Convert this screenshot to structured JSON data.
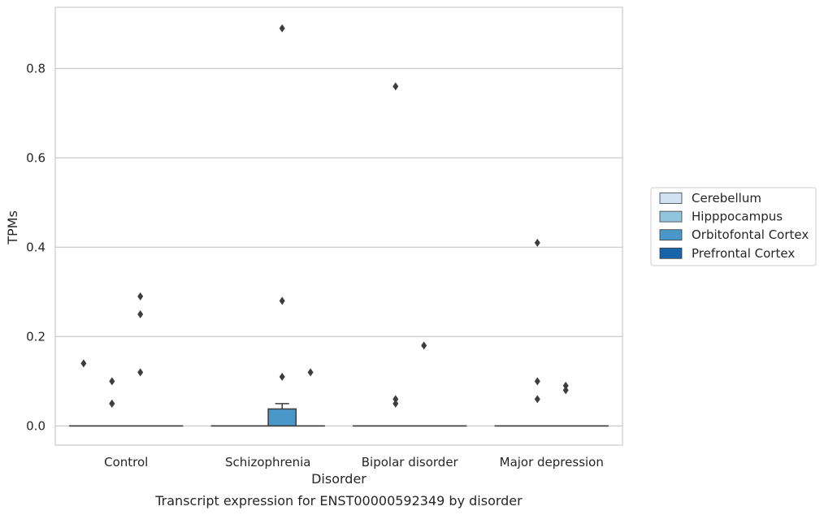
{
  "chart_data": {
    "type": "box",
    "caption": "Transcript expression for ENST00000592349 by disorder",
    "xlabel": "Disorder",
    "ylabel": "TPMs",
    "ylim": [
      -0.043,
      0.937
    ],
    "yticks": [
      0.0,
      0.2,
      0.4,
      0.6,
      0.8
    ],
    "ytick_labels": [
      "0.0",
      "0.2",
      "0.4",
      "0.6",
      "0.8"
    ],
    "grid": "horizontal",
    "categories": [
      "Control",
      "Schizophrenia",
      "Bipolar disorder",
      "Major depression"
    ],
    "legend_position": "right",
    "series": [
      {
        "name": "Cerebellum",
        "color": "#cfe1f2",
        "boxes": [
          {
            "q1": 0,
            "median": 0,
            "q3": 0,
            "whislo": 0,
            "whishi": 0,
            "fliers": [
              0.14
            ]
          },
          {
            "q1": 0,
            "median": 0,
            "q3": 0,
            "whislo": 0,
            "whishi": 0,
            "fliers": []
          },
          {
            "q1": 0,
            "median": 0,
            "q3": 0,
            "whislo": 0,
            "whishi": 0,
            "fliers": []
          },
          {
            "q1": 0,
            "median": 0,
            "q3": 0,
            "whislo": 0,
            "whishi": 0,
            "fliers": []
          }
        ]
      },
      {
        "name": "Hipppocampus",
        "color": "#93c4de",
        "boxes": [
          {
            "q1": 0,
            "median": 0,
            "q3": 0,
            "whislo": 0,
            "whishi": 0,
            "fliers": [
              0.1,
              0.05,
              0.05
            ]
          },
          {
            "q1": 0,
            "median": 0,
            "q3": 0,
            "whislo": 0,
            "whishi": 0,
            "fliers": []
          },
          {
            "q1": 0,
            "median": 0,
            "q3": 0,
            "whislo": 0,
            "whishi": 0,
            "fliers": [
              0.76,
              0.06,
              0.05
            ]
          },
          {
            "q1": 0,
            "median": 0,
            "q3": 0,
            "whislo": 0,
            "whishi": 0,
            "fliers": [
              0.41,
              0.1,
              0.06
            ]
          }
        ]
      },
      {
        "name": "Orbitofontal Cortex",
        "color": "#4a98c9",
        "boxes": [
          {
            "q1": 0,
            "median": 0,
            "q3": 0,
            "whislo": 0,
            "whishi": 0,
            "fliers": [
              0.29,
              0.25,
              0.12
            ]
          },
          {
            "q1": 0,
            "median": 0,
            "q3": 0.038,
            "whislo": 0,
            "whishi": 0.05,
            "fliers": [
              0.89,
              0.28,
              0.11
            ]
          },
          {
            "q1": 0,
            "median": 0,
            "q3": 0,
            "whislo": 0,
            "whishi": 0,
            "fliers": [
              0.18
            ]
          },
          {
            "q1": 0,
            "median": 0,
            "q3": 0,
            "whislo": 0,
            "whishi": 0,
            "fliers": [
              0.09,
              0.08
            ]
          }
        ]
      },
      {
        "name": "Prefrontal Cortex",
        "color": "#1764ab",
        "boxes": [
          {
            "q1": 0,
            "median": 0,
            "q3": 0,
            "whislo": 0,
            "whishi": 0,
            "fliers": []
          },
          {
            "q1": 0,
            "median": 0,
            "q3": 0,
            "whislo": 0,
            "whishi": 0,
            "fliers": [
              0.12
            ]
          },
          {
            "q1": 0,
            "median": 0,
            "q3": 0,
            "whislo": 0,
            "whishi": 0,
            "fliers": []
          },
          {
            "q1": 0,
            "median": 0,
            "q3": 0,
            "whislo": 0,
            "whishi": 0,
            "fliers": []
          }
        ]
      }
    ],
    "colors": {
      "grid": "#cccccc",
      "frame": "#cccccc",
      "line": "#3d3d3d"
    }
  }
}
